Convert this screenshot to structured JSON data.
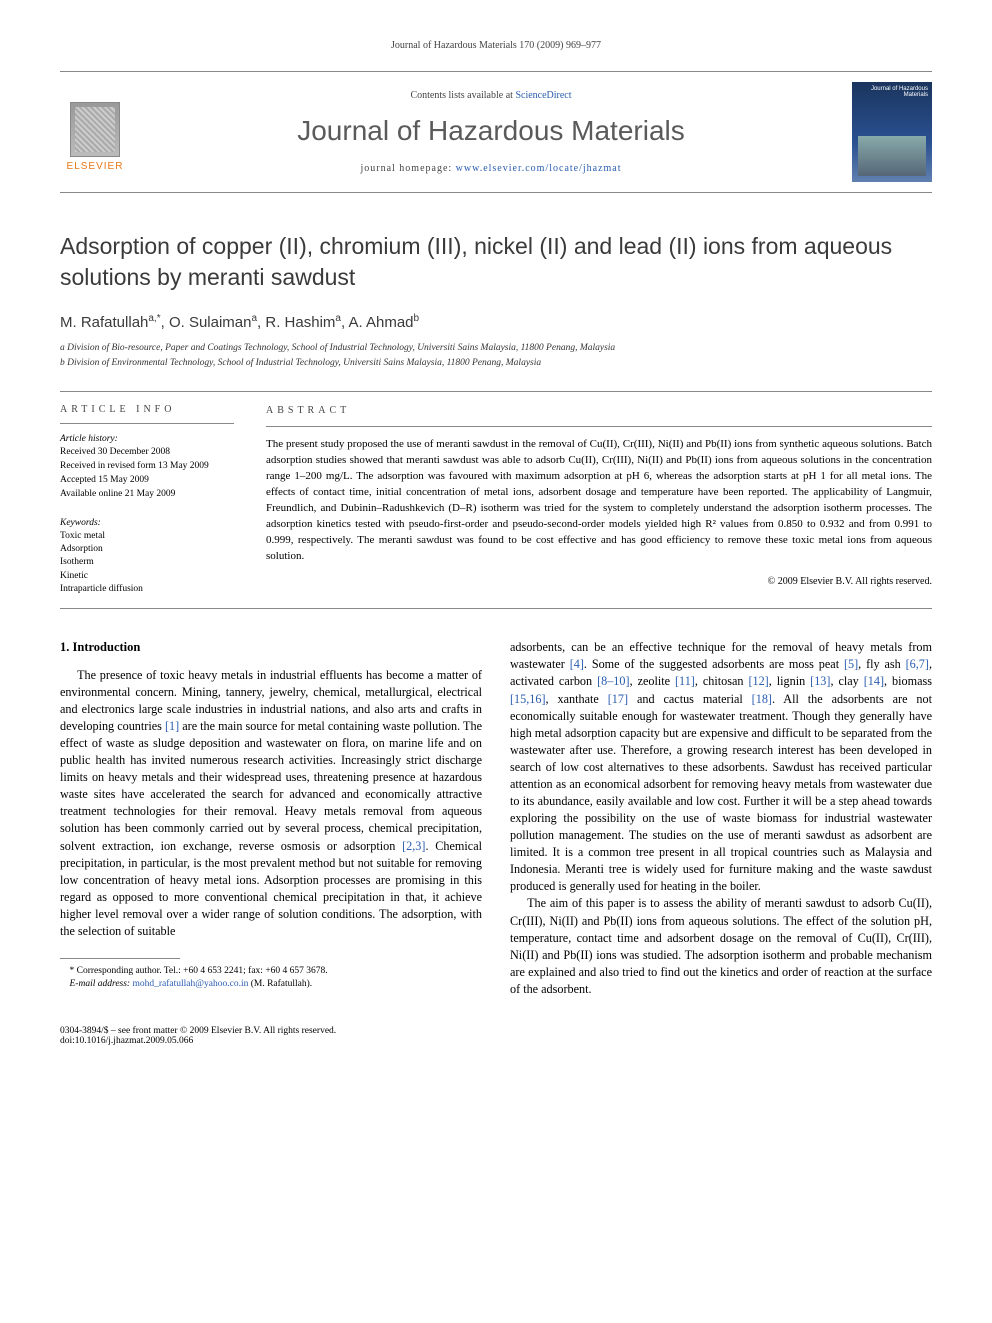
{
  "running_head": "Journal of Hazardous Materials 170 (2009) 969–977",
  "masthead": {
    "contents_prefix": "Contents lists available at ",
    "contents_link": "ScienceDirect",
    "journal_name": "Journal of Hazardous Materials",
    "homepage_prefix": "journal homepage: ",
    "homepage_url": "www.elsevier.com/locate/jhazmat",
    "publisher_label": "ELSEVIER",
    "cover_title": "Journal of Hazardous Materials"
  },
  "article": {
    "title": "Adsorption of copper (II), chromium (III), nickel (II) and lead (II) ions from aqueous solutions by meranti sawdust",
    "authors_html": "M. Rafatullah<sup>a,*</sup>, O. Sulaiman<sup>a</sup>, R. Hashim<sup>a</sup>, A. Ahmad<sup>b</sup>",
    "affiliations": [
      "a Division of Bio-resource, Paper and Coatings Technology, School of Industrial Technology, Universiti Sains Malaysia, 11800 Penang, Malaysia",
      "b Division of Environmental Technology, School of Industrial Technology, Universiti Sains Malaysia, 11800 Penang, Malaysia"
    ]
  },
  "info": {
    "heading": "article info",
    "history_label": "Article history:",
    "history": [
      "Received 30 December 2008",
      "Received in revised form 13 May 2009",
      "Accepted 15 May 2009",
      "Available online 21 May 2009"
    ],
    "keywords_label": "Keywords:",
    "keywords": [
      "Toxic metal",
      "Adsorption",
      "Isotherm",
      "Kinetic",
      "Intraparticle diffusion"
    ]
  },
  "abstract": {
    "heading": "abstract",
    "text": "The present study proposed the use of meranti sawdust in the removal of Cu(II), Cr(III), Ni(II) and Pb(II) ions from synthetic aqueous solutions. Batch adsorption studies showed that meranti sawdust was able to adsorb Cu(II), Cr(III), Ni(II) and Pb(II) ions from aqueous solutions in the concentration range 1–200 mg/L. The adsorption was favoured with maximum adsorption at pH 6, whereas the adsorption starts at pH 1 for all metal ions. The effects of contact time, initial concentration of metal ions, adsorbent dosage and temperature have been reported. The applicability of Langmuir, Freundlich, and Dubinin–Radushkevich (D–R) isotherm was tried for the system to completely understand the adsorption isotherm processes. The adsorption kinetics tested with pseudo-first-order and pseudo-second-order models yielded high R² values from 0.850 to 0.932 and from 0.991 to 0.999, respectively. The meranti sawdust was found to be cost effective and has good efficiency to remove these toxic metal ions from aqueous solution.",
    "copyright": "© 2009 Elsevier B.V. All rights reserved."
  },
  "body": {
    "heading": "1.  Introduction",
    "p1": "The presence of toxic heavy metals in industrial effluents has become a matter of environmental concern. Mining, tannery, jewelry, chemical, metallurgical, electrical and electronics large scale industries in industrial nations, and also arts and crafts in developing countries [1] are the main source for metal containing waste pollution. The effect of waste as sludge deposition and wastewater on flora, on marine life and on public health has invited numerous research activities. Increasingly strict discharge limits on heavy metals and their widespread uses, threatening presence at hazardous waste sites have accelerated the search for advanced and economically attractive treatment technologies for their removal. Heavy metals removal from aqueous solution has been commonly carried out by several process, chemical precipitation, solvent extraction, ion exchange, reverse osmosis or adsorption [2,3]. Chemical precipitation, in particular, is the most prevalent method but not suitable for removing low concentration of heavy metal ions. Adsorption processes are promising in this regard as opposed to more conventional chemical precipitation in that, it achieve higher level removal over a wider range of solution conditions. The adsorption, with the selection of suitable",
    "p2": "adsorbents, can be an effective technique for the removal of heavy metals from wastewater [4]. Some of the suggested adsorbents are moss peat [5], fly ash [6,7], activated carbon [8–10], zeolite [11], chitosan [12], lignin [13], clay [14], biomass [15,16], xanthate [17] and cactus material [18]. All the adsorbents are not economically suitable enough for wastewater treatment. Though they generally have high metal adsorption capacity but are expensive and difficult to be separated from the wastewater after use. Therefore, a growing research interest has been developed in search of low cost alternatives to these adsorbents. Sawdust has received particular attention as an economical adsorbent for removing heavy metals from wastewater due to its abundance, easily available and low cost. Further it will be a step ahead towards exploring the possibility on the use of waste biomass for industrial wastewater pollution management. The studies on the use of meranti sawdust as adsorbent are limited. It is a common tree present in all tropical countries such as Malaysia and Indonesia. Meranti tree is widely used for furniture making and the waste sawdust produced is generally used for heating in the boiler.",
    "p3": "The aim of this paper is to assess the ability of meranti sawdust to adsorb Cu(II), Cr(III), Ni(II) and Pb(II) ions from aqueous solutions. The effect of the solution pH, temperature, contact time and adsorbent dosage on the removal of Cu(II), Cr(III), Ni(II) and Pb(II) ions was studied. The adsorption isotherm and probable mechanism are explained and also tried to find out the kinetics and order of reaction at the surface of the adsorbent."
  },
  "footnote": {
    "corr": "* Corresponding author. Tel.: +60 4 653 2241; fax: +60 4 657 3678.",
    "email_label": "E-mail address: ",
    "email": "mohd_rafatullah@yahoo.co.in",
    "email_suffix": " (M. Rafatullah)."
  },
  "footer": {
    "left_line1": "0304-3894/$ – see front matter © 2009 Elsevier B.V. All rights reserved.",
    "left_line2": "doi:10.1016/j.jhazmat.2009.05.066"
  },
  "colors": {
    "link": "#2a5db0",
    "elsevier_orange": "#e67817",
    "rule": "#888888",
    "heading_gray": "#5a5a5a"
  }
}
